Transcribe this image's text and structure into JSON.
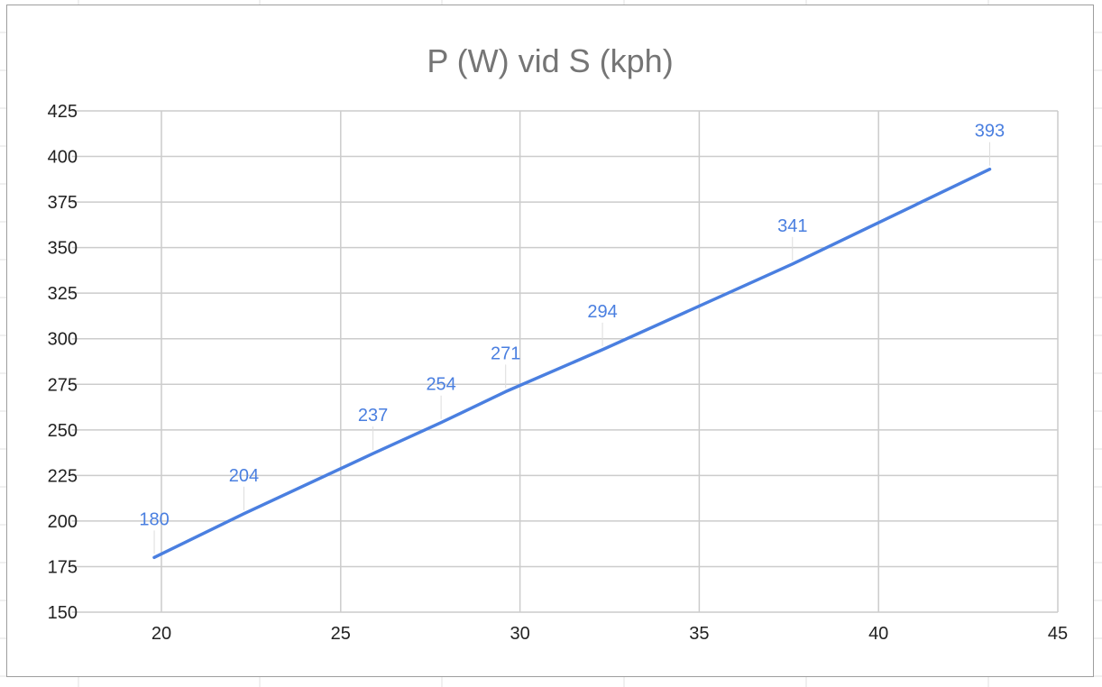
{
  "chart_data": {
    "type": "line",
    "title": "P (W) vid S (kph)",
    "xlabel": "",
    "ylabel": "",
    "xlim": [
      17.5,
      45
    ],
    "ylim": [
      150,
      425
    ],
    "x_ticks": [
      20,
      25,
      30,
      35,
      40,
      45
    ],
    "y_ticks": [
      150,
      175,
      200,
      225,
      250,
      275,
      300,
      325,
      350,
      375,
      400,
      425
    ],
    "grid": true,
    "legend": "none",
    "series": [
      {
        "color": "#4a7fe0",
        "points": [
          {
            "x": 19.8,
            "y": 180,
            "label": "180"
          },
          {
            "x": 22.3,
            "y": 204,
            "label": "204"
          },
          {
            "x": 25.9,
            "y": 237,
            "label": "237"
          },
          {
            "x": 27.8,
            "y": 254,
            "label": "254"
          },
          {
            "x": 29.6,
            "y": 271,
            "label": "271"
          },
          {
            "x": 32.3,
            "y": 294,
            "label": "294"
          },
          {
            "x": 37.6,
            "y": 341,
            "label": "341"
          },
          {
            "x": 43.1,
            "y": 393,
            "label": "393"
          }
        ]
      }
    ],
    "colors": {
      "line": "#4a7fe0",
      "data_label": "#4a7fe0",
      "grid": "#cccccc",
      "title": "#757575",
      "tick_label": "#222222"
    }
  }
}
